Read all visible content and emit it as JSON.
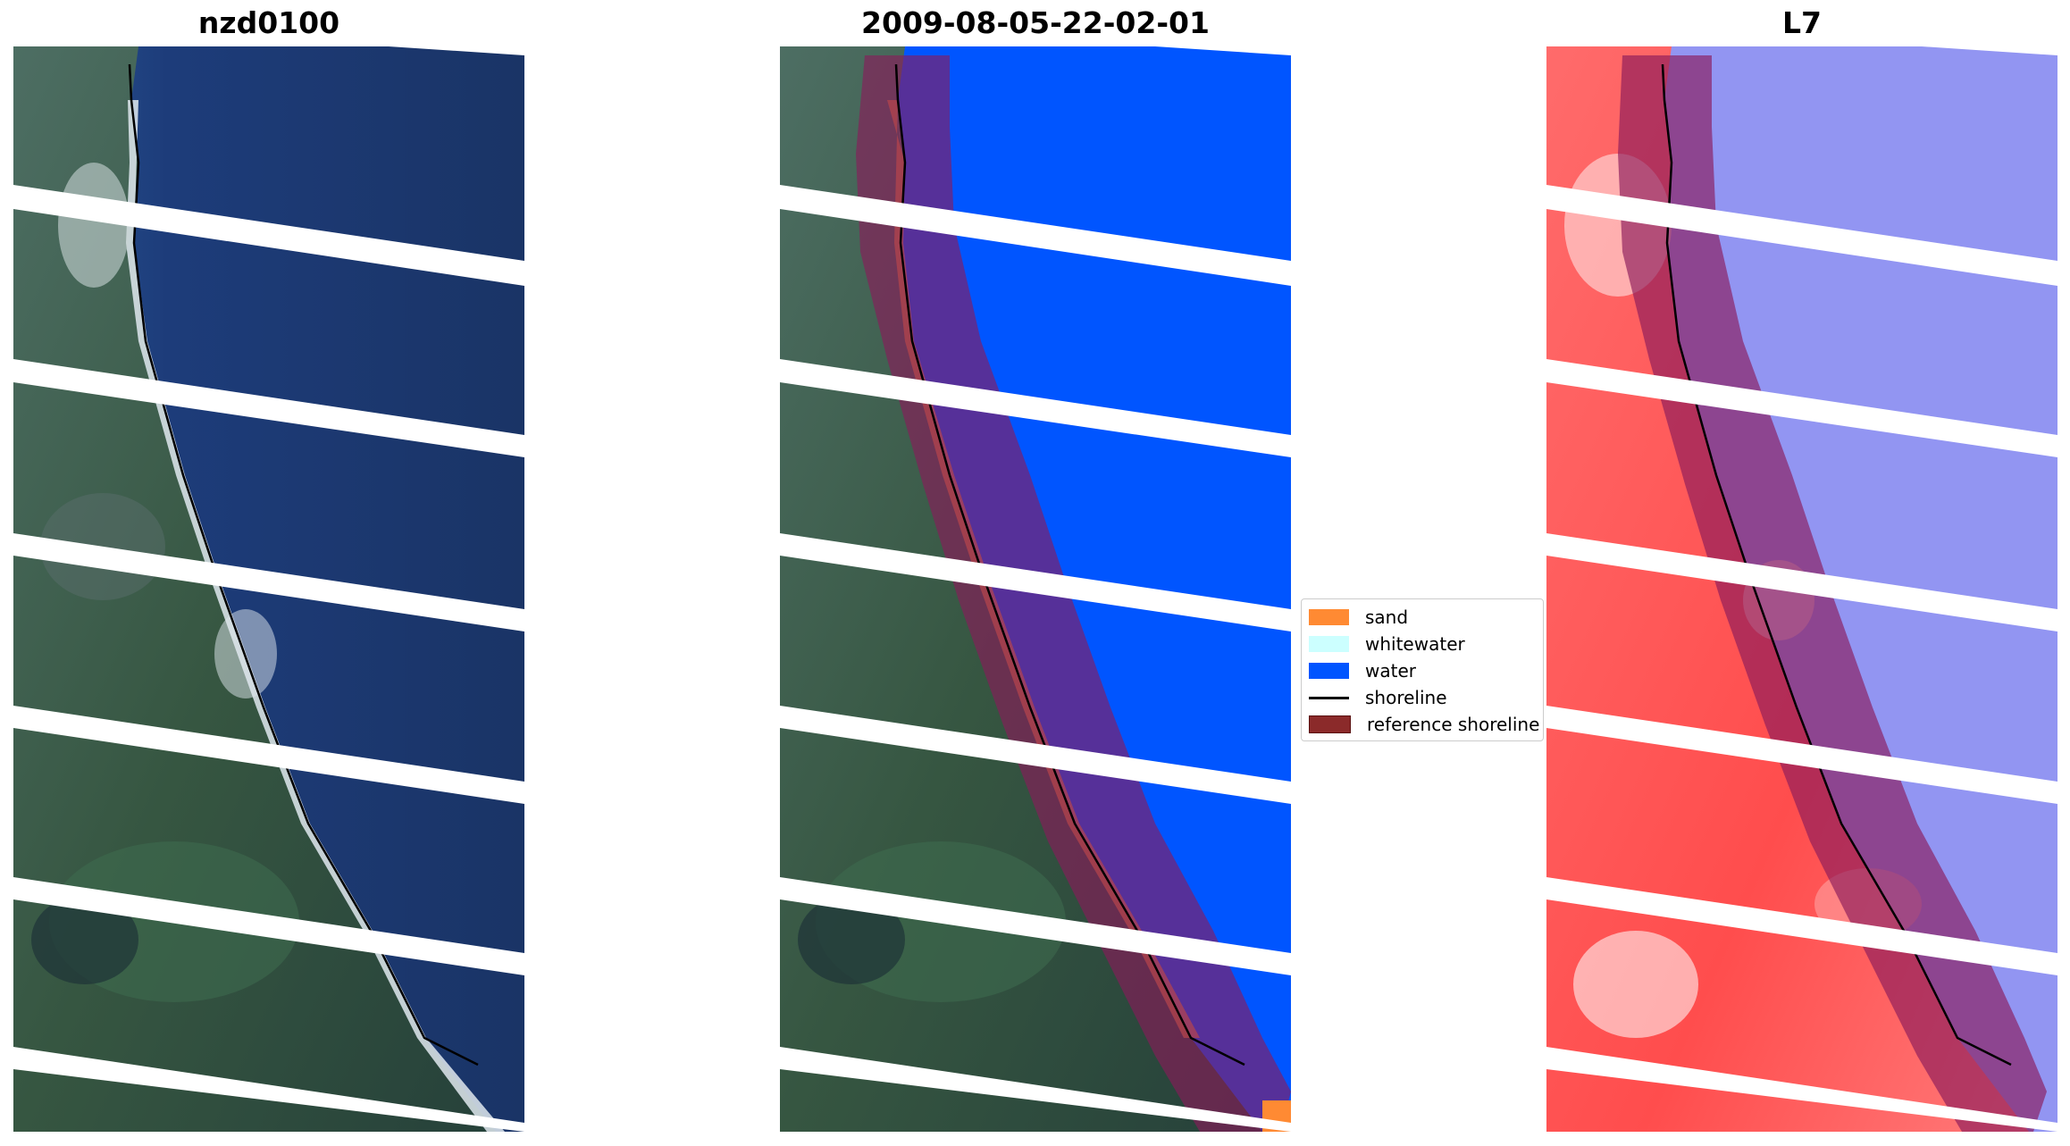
{
  "panels": [
    {
      "title": "nzd0100"
    },
    {
      "title": "2009-08-05-22-02-01"
    },
    {
      "title": "L7"
    }
  ],
  "legend": {
    "items": [
      {
        "label": "sand",
        "color": "#ff8a33"
      },
      {
        "label": "whitewater",
        "color": "#ccffff"
      },
      {
        "label": "water",
        "color": "#0055ff"
      },
      {
        "label": "shoreline",
        "color": "#000000"
      },
      {
        "label": "reference shoreline",
        "color": "#8b1a1a"
      }
    ]
  },
  "colors": {
    "land": "#3a5a45",
    "ocean": "#1b3a78",
    "surf": "#dfe8ef",
    "water_class": "#0055ff",
    "reference_band": "#8b1a5a",
    "index_land": "#ff5555",
    "index_water": "#7777ee"
  }
}
